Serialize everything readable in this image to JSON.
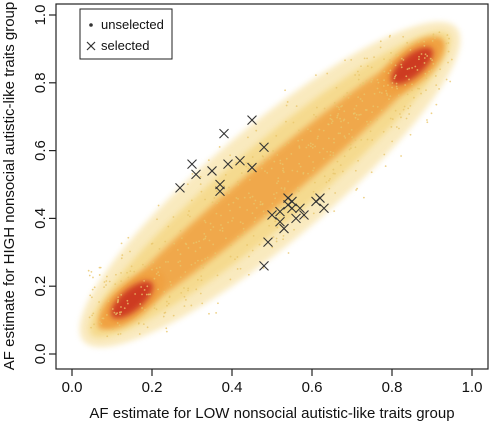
{
  "chart_data": {
    "type": "scatter",
    "title": "",
    "xlabel": "AF estimate for LOW nonsocial autistic-like traits group",
    "ylabel": "AF estimate for HIGH nonsocial autistic-like traits group",
    "xlim": [
      0.0,
      1.0
    ],
    "ylim": [
      0.0,
      1.0
    ],
    "x_ticks": [
      "0.0",
      "0.2",
      "0.4",
      "0.6",
      "0.8",
      "1.0"
    ],
    "y_ticks": [
      "0.0",
      "0.2",
      "0.4",
      "0.6",
      "0.8",
      "1.0"
    ],
    "grid": false,
    "legend_position": "top-left",
    "series": [
      {
        "name": "unselected",
        "marker": "dot",
        "density_band": {
          "x_range": [
            0.04,
            0.95
          ],
          "y_range": [
            0.05,
            0.95
          ],
          "relation": "y approximately equals x",
          "peaks": [
            [
              0.15,
              0.16
            ],
            [
              0.85,
              0.85
            ]
          ]
        }
      },
      {
        "name": "selected",
        "marker": "x",
        "points": [
          [
            0.27,
            0.49
          ],
          [
            0.3,
            0.56
          ],
          [
            0.31,
            0.53
          ],
          [
            0.35,
            0.54
          ],
          [
            0.37,
            0.5
          ],
          [
            0.38,
            0.65
          ],
          [
            0.39,
            0.56
          ],
          [
            0.42,
            0.57
          ],
          [
            0.45,
            0.55
          ],
          [
            0.45,
            0.69
          ],
          [
            0.37,
            0.48
          ],
          [
            0.48,
            0.61
          ],
          [
            0.5,
            0.41
          ],
          [
            0.52,
            0.39
          ],
          [
            0.53,
            0.37
          ],
          [
            0.54,
            0.46
          ],
          [
            0.55,
            0.45
          ],
          [
            0.55,
            0.43
          ],
          [
            0.56,
            0.4
          ],
          [
            0.57,
            0.43
          ],
          [
            0.58,
            0.41
          ],
          [
            0.61,
            0.45
          ],
          [
            0.62,
            0.46
          ],
          [
            0.63,
            0.43
          ],
          [
            0.52,
            0.42
          ],
          [
            0.49,
            0.33
          ],
          [
            0.48,
            0.26
          ],
          [
            0.54,
            0.44
          ]
        ]
      }
    ],
    "colors": {
      "density_low": "#f5d98a",
      "density_mid": "#f0a040",
      "density_high": "#c82a1e",
      "selected_marker": "#333333"
    }
  }
}
